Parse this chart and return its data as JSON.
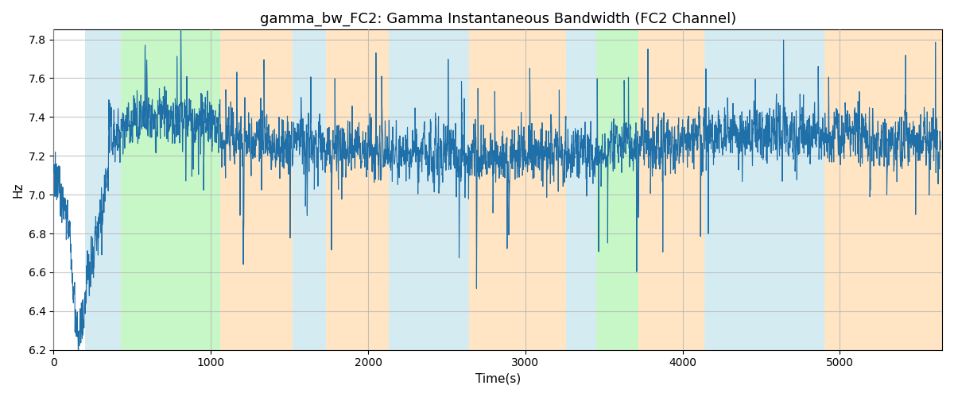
{
  "title": "gamma_bw_FC2: Gamma Instantaneous Bandwidth (FC2 Channel)",
  "xlabel": "Time(s)",
  "ylabel": "Hz",
  "ylim": [
    6.2,
    7.85
  ],
  "xlim": [
    0,
    5650
  ],
  "line_color": "#1f6fa8",
  "line_width": 0.8,
  "background_bands": [
    {
      "xmin": 200,
      "xmax": 430,
      "color": "#add8e6",
      "alpha": 0.5
    },
    {
      "xmin": 430,
      "xmax": 1060,
      "color": "#90ee90",
      "alpha": 0.5
    },
    {
      "xmin": 1060,
      "xmax": 1520,
      "color": "#ffd59e",
      "alpha": 0.6
    },
    {
      "xmin": 1520,
      "xmax": 1730,
      "color": "#add8e6",
      "alpha": 0.5
    },
    {
      "xmin": 1730,
      "xmax": 2130,
      "color": "#ffd59e",
      "alpha": 0.6
    },
    {
      "xmin": 2130,
      "xmax": 2640,
      "color": "#add8e6",
      "alpha": 0.5
    },
    {
      "xmin": 2640,
      "xmax": 3260,
      "color": "#ffd59e",
      "alpha": 0.6
    },
    {
      "xmin": 3260,
      "xmax": 3450,
      "color": "#add8e6",
      "alpha": 0.5
    },
    {
      "xmin": 3450,
      "xmax": 3720,
      "color": "#90ee90",
      "alpha": 0.5
    },
    {
      "xmin": 3720,
      "xmax": 4140,
      "color": "#ffd59e",
      "alpha": 0.6
    },
    {
      "xmin": 4140,
      "xmax": 4900,
      "color": "#add8e6",
      "alpha": 0.5
    },
    {
      "xmin": 4900,
      "xmax": 5650,
      "color": "#ffd59e",
      "alpha": 0.6
    }
  ],
  "seed": 1234,
  "n_points": 5600,
  "time_start": 0,
  "time_end": 5640,
  "title_fontsize": 13,
  "label_fontsize": 11,
  "tick_fontsize": 10,
  "grid_color": "#b0b0b0",
  "grid_alpha": 0.7,
  "grid_linewidth": 0.8
}
